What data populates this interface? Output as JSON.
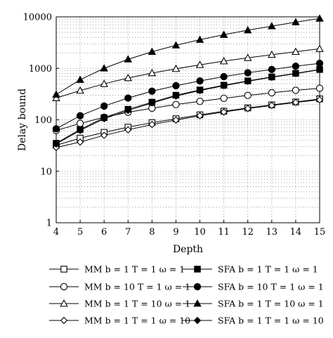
{
  "chart_data": {
    "type": "line",
    "xlabel": "Depth",
    "ylabel": "Delay bound",
    "x": [
      4,
      5,
      6,
      7,
      8,
      9,
      10,
      11,
      12,
      13,
      14,
      15
    ],
    "xlim": [
      4,
      15
    ],
    "ylim": [
      1,
      10000
    ],
    "yscale": "log",
    "x_ticks": [
      "4",
      "5",
      "6",
      "7",
      "8",
      "9",
      "10",
      "11",
      "12",
      "13",
      "14",
      "15"
    ],
    "y_ticks": [
      "1",
      "10",
      "100",
      "1000",
      "10000"
    ],
    "grid": "dotted",
    "legend_position": "bottom",
    "series": [
      {
        "name": "MM b = 1 T = 1 ω = 1",
        "marker": "square-open",
        "values": [
          32,
          44,
          57,
          72,
          88,
          105,
          125,
          147,
          170,
          195,
          222,
          255
        ]
      },
      {
        "name": "MM b = 10 T = 1 ω = 1",
        "marker": "circle-open",
        "values": [
          62,
          85,
          112,
          140,
          168,
          198,
          228,
          262,
          298,
          335,
          375,
          410
        ]
      },
      {
        "name": "MM b = 1 T = 10 ω = 1",
        "marker": "triangle-open",
        "values": [
          265,
          370,
          500,
          650,
          810,
          980,
          1170,
          1380,
          1600,
          1840,
          2100,
          2400
        ]
      },
      {
        "name": "MM b = 1 T = 1 ω = 10",
        "marker": "diamond-open",
        "values": [
          29,
          37,
          50,
          64,
          81,
          99,
          120,
          142,
          166,
          190,
          218,
          245
        ]
      },
      {
        "name": "SFA b = 1 T = 1 ω = 1",
        "marker": "square-filled",
        "values": [
          35,
          65,
          110,
          160,
          220,
          300,
          380,
          470,
          570,
          680,
          800,
          950
        ]
      },
      {
        "name": "SFA b = 10 T = 1 ω = 1",
        "marker": "circle-filled",
        "values": [
          67,
          120,
          185,
          265,
          360,
          460,
          570,
          690,
          820,
          950,
          1100,
          1250
        ]
      },
      {
        "name": "SFA b = 1 T = 10 ω = 1",
        "marker": "triangle-filled",
        "values": [
          310,
          600,
          1000,
          1500,
          2100,
          2800,
          3600,
          4500,
          5500,
          6600,
          7900,
          9300
        ]
      },
      {
        "name": "SFA b = 1 T = 1 ω = 10",
        "marker": "diamond-filled",
        "values": [
          34,
          62,
          105,
          152,
          212,
          290,
          370,
          460,
          560,
          670,
          790,
          940
        ]
      }
    ]
  }
}
